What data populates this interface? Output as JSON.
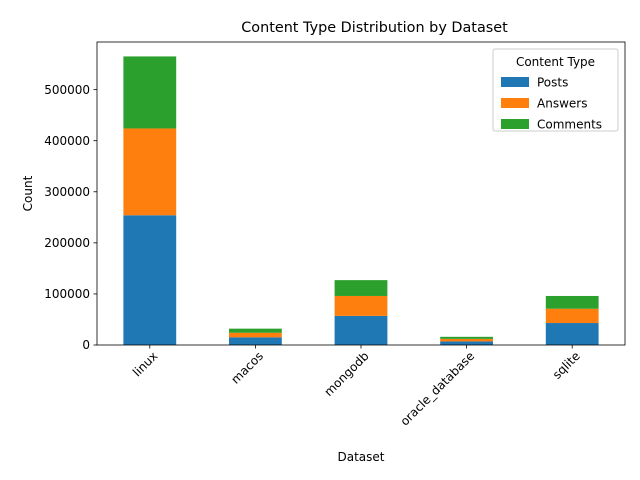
{
  "chart_data": {
    "type": "bar",
    "stacked": true,
    "title": "Content Type Distribution by Dataset",
    "xlabel": "Dataset",
    "ylabel": "Count",
    "categories": [
      "linux",
      "macos",
      "mongodb",
      "oracle_database",
      "sqlite"
    ],
    "series": [
      {
        "name": "Posts",
        "color": "#1f77b4",
        "values": [
          254000,
          15000,
          57000,
          7000,
          43000
        ]
      },
      {
        "name": "Answers",
        "color": "#ff7f0e",
        "values": [
          170000,
          9000,
          39000,
          5000,
          28000
        ]
      },
      {
        "name": "Comments",
        "color": "#2ca02c",
        "values": [
          141000,
          8000,
          31000,
          4000,
          25000
        ]
      }
    ],
    "ylim": [
      0,
      593250
    ],
    "yticks": [
      0,
      100000,
      200000,
      300000,
      400000,
      500000
    ],
    "legend": {
      "title": "Content Type",
      "placement": "top-right"
    },
    "grid": false
  }
}
